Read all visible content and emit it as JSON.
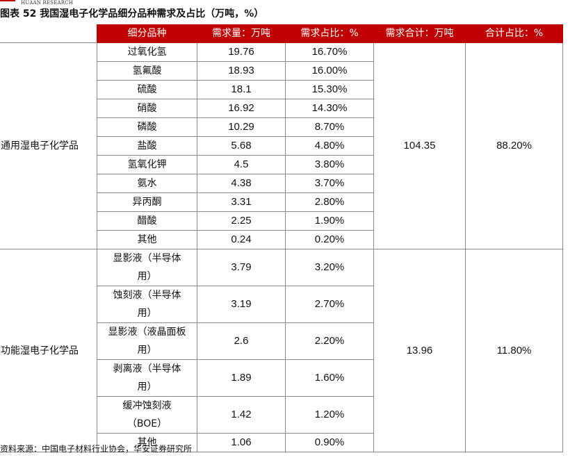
{
  "header": {
    "logo_text": "HUAAN RESEARCH",
    "title": "图表 52 我国湿电子化学品细分品种需求及占比（万吨，%）"
  },
  "table": {
    "columns": [
      "细分品种",
      "需求量：万吨",
      "需求占比：%",
      "需求合计：万吨",
      "合计占比：%"
    ],
    "groups": [
      {
        "category": "通用湿电子化学品",
        "total": "104.35",
        "total_share": "88.20%",
        "rows": [
          {
            "name": "过氧化氢",
            "demand": "19.76",
            "share": "16.70%"
          },
          {
            "name": "氢氟酸",
            "demand": "18.93",
            "share": "16.00%"
          },
          {
            "name": "硫酸",
            "demand": "18.1",
            "share": "15.30%"
          },
          {
            "name": "硝酸",
            "demand": "16.92",
            "share": "14.30%"
          },
          {
            "name": "磷酸",
            "demand": "10.29",
            "share": "8.70%"
          },
          {
            "name": "盐酸",
            "demand": "5.68",
            "share": "4.80%"
          },
          {
            "name": "氢氧化钾",
            "demand": "4.5",
            "share": "3.80%"
          },
          {
            "name": "氨水",
            "demand": "4.38",
            "share": "3.70%"
          },
          {
            "name": "异丙酮",
            "demand": "3.31",
            "share": "2.80%"
          },
          {
            "name": "醋酸",
            "demand": "2.25",
            "share": "1.90%"
          },
          {
            "name": "其他",
            "demand": "0.24",
            "share": "0.20%"
          }
        ]
      },
      {
        "category": "功能湿电子化学品",
        "total": "13.96",
        "total_share": "11.80%",
        "rows": [
          {
            "name_l1": "显影液（半导体",
            "name_l2": "用）",
            "demand": "3.79",
            "share": "3.20%"
          },
          {
            "name_l1": "蚀刻液（半导体",
            "name_l2": "用）",
            "demand": "3.19",
            "share": "2.70%"
          },
          {
            "name_l1": "显影液（液晶面板",
            "name_l2": "用）",
            "demand": "2.6",
            "share": "2.20%"
          },
          {
            "name_l1": "剥离液（半导体",
            "name_l2": "用）",
            "demand": "1.89",
            "share": "1.60%"
          },
          {
            "name_l1": "缓冲蚀刻液",
            "name_l2": "（BOE）",
            "demand": "1.42",
            "share": "1.20%"
          },
          {
            "name": "其他",
            "demand": "1.06",
            "share": "0.90%"
          }
        ]
      }
    ]
  },
  "footer": {
    "source": "资料来源：中国电子材料行业协会，华安证券研究所"
  }
}
